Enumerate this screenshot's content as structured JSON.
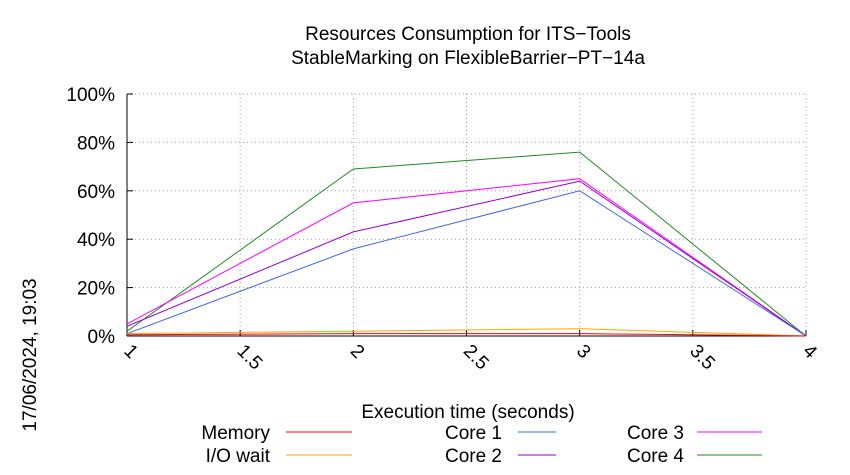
{
  "chart_data": {
    "type": "line",
    "title": "Resources Consumption for ITS−Tools",
    "subtitle": "StableMarking on FlexibleBarrier−PT−14a",
    "xlabel": "Execution time (seconds)",
    "ylabel": "",
    "side_label": "17/06/2024, 19:03",
    "xlim": [
      1,
      4
    ],
    "ylim": [
      0,
      100
    ],
    "x_ticks": [
      1,
      1.5,
      2,
      2.5,
      3,
      3.5,
      4
    ],
    "x_tick_labels": [
      "1",
      "1.5",
      "2",
      "2.5",
      "3",
      "3.5",
      "4"
    ],
    "y_ticks": [
      0,
      20,
      40,
      60,
      80,
      100
    ],
    "y_tick_labels": [
      "0%",
      "20%",
      "40%",
      "60%",
      "80%",
      "100%"
    ],
    "grid": true,
    "legend_position": "bottom",
    "series": [
      {
        "name": "Memory",
        "color": "#ff0000",
        "x": [
          1,
          2,
          3,
          4
        ],
        "y": [
          0.5,
          1,
          1,
          0
        ]
      },
      {
        "name": "I/O wait",
        "color": "#ffa500",
        "x": [
          1,
          2,
          3,
          4
        ],
        "y": [
          1,
          2,
          3,
          0
        ]
      },
      {
        "name": "Core 1",
        "color": "#4169e1",
        "x": [
          1,
          2,
          3,
          4
        ],
        "y": [
          1,
          36,
          60,
          0
        ]
      },
      {
        "name": "Core 2",
        "color": "#9400d3",
        "x": [
          1,
          2,
          3,
          4
        ],
        "y": [
          4,
          43,
          64,
          0
        ]
      },
      {
        "name": "Core 3",
        "color": "#ff00ff",
        "x": [
          1,
          2,
          3,
          4
        ],
        "y": [
          5,
          55,
          65,
          0
        ]
      },
      {
        "name": "Core 4",
        "color": "#228b22",
        "x": [
          1,
          2,
          3,
          4
        ],
        "y": [
          2,
          69,
          76,
          0
        ]
      }
    ]
  }
}
